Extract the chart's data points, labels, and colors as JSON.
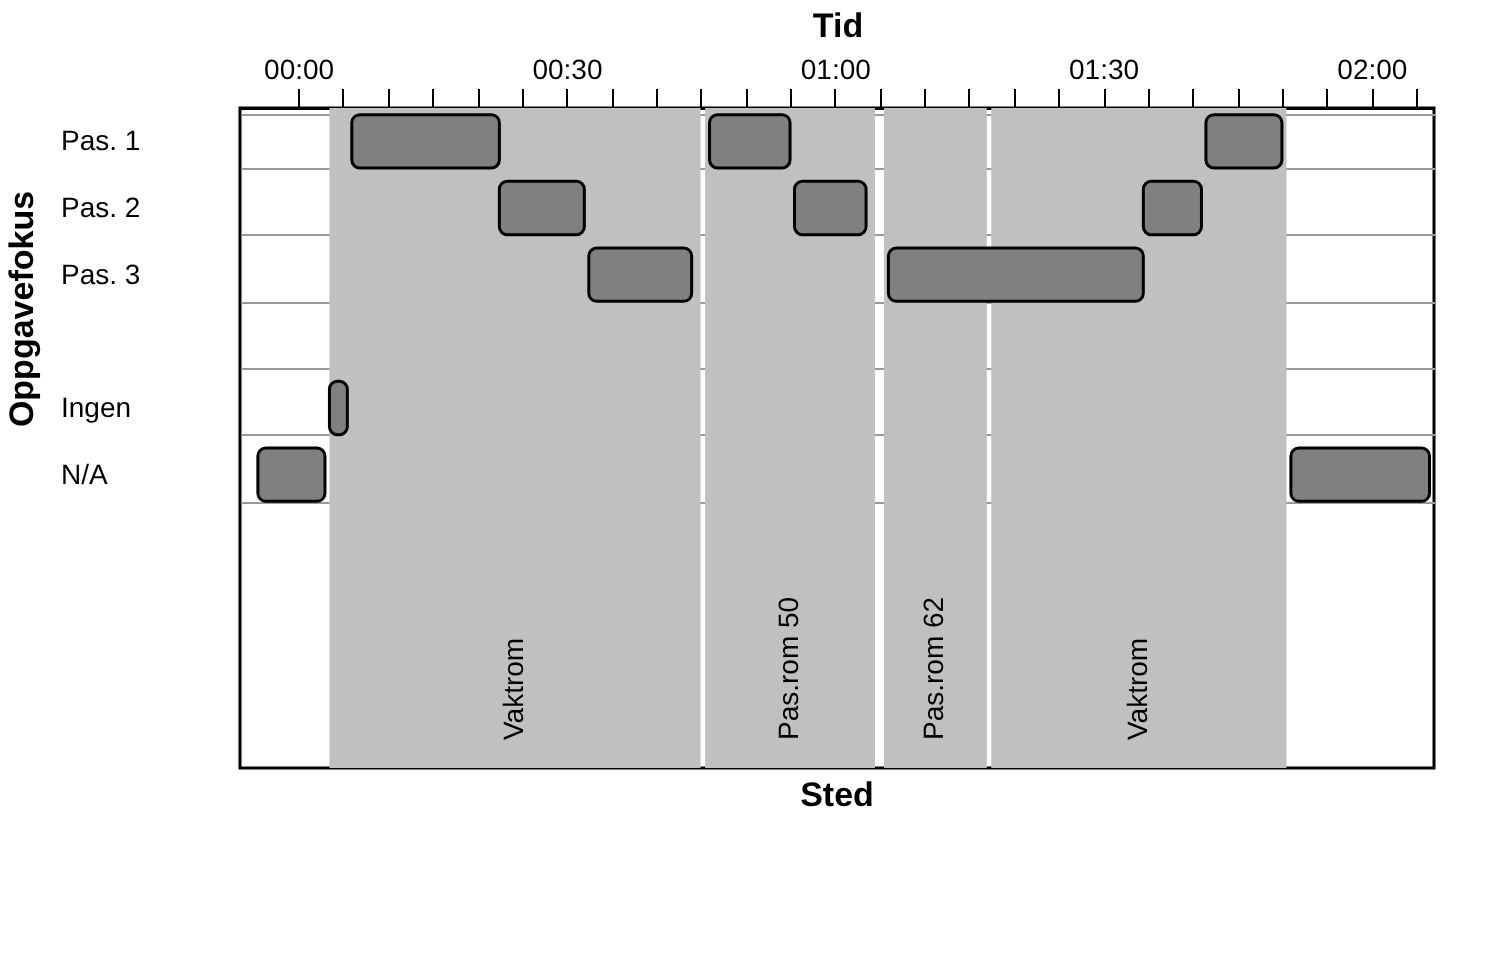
{
  "chart_data": {
    "type": "bar",
    "orientation": "horizontal",
    "xlabel": "Tid",
    "ylabel": "Oppgavefokus",
    "categories": [
      "Pas. 1",
      "Pas. 2",
      "Pas. 3",
      null,
      "Ingen",
      "N/A"
    ],
    "series": [
      {
        "color": "#808080",
        "base": [
          6,
          22.5,
          32.5,
          null,
          3.5,
          -4.5
        ],
        "values": [
          16.5,
          9.5,
          11.5,
          null,
          2,
          7.5
        ]
      },
      {
        "color": "#808080",
        "base": [
          46,
          55.5,
          66,
          null,
          null,
          111
        ],
        "values": [
          9,
          8,
          28.5,
          null,
          null,
          15.5
        ]
      },
      {
        "color": "#808080",
        "base": [
          101.5,
          94.5,
          null,
          null,
          null,
          null
        ],
        "values": [
          8.5,
          6.5,
          null,
          null,
          null,
          null
        ]
      }
    ],
    "xlim": [
      -6.5,
      127
    ],
    "xticks": [
      {
        "value": 0,
        "label": "00:00"
      },
      {
        "value": 5,
        "label": null
      },
      {
        "value": 10,
        "label": null
      },
      {
        "value": 15,
        "label": null
      },
      {
        "value": 20,
        "label": null
      },
      {
        "value": 25,
        "label": null
      },
      {
        "value": 30,
        "label": "00:30"
      },
      {
        "value": 35,
        "label": null
      },
      {
        "value": 40,
        "label": null
      },
      {
        "value": 45,
        "label": null
      },
      {
        "value": 50,
        "label": null
      },
      {
        "value": 55,
        "label": null
      },
      {
        "value": 60,
        "label": "01:00"
      },
      {
        "value": 65,
        "label": null
      },
      {
        "value": 70,
        "label": null
      },
      {
        "value": 75,
        "label": null
      },
      {
        "value": 80,
        "label": null
      },
      {
        "value": 85,
        "label": null
      },
      {
        "value": 90,
        "label": "01:30"
      },
      {
        "value": 95,
        "label": null
      },
      {
        "value": 100,
        "label": null
      },
      {
        "value": 105,
        "label": null
      },
      {
        "value": 110,
        "label": null
      },
      {
        "value": 115,
        "label": null
      },
      {
        "value": 120,
        "label": "02:00"
      },
      {
        "value": 125,
        "label": null
      }
    ],
    "bands": [
      {
        "axis": "x",
        "from": 3.5,
        "to": 45,
        "label": "Vaktrom",
        "color": "#c0c0c0"
      },
      {
        "axis": "x",
        "from": 45.5,
        "to": 64.5,
        "label": "Pas.rom 50",
        "color": "#c0c0c0"
      },
      {
        "axis": "x",
        "from": 65.5,
        "to": 77,
        "label": "Pas.rom 62",
        "color": "#c0c0c0"
      },
      {
        "axis": "x",
        "from": 77.5,
        "to": 110.5,
        "label": "Vaktrom",
        "color": "#c0c0c0"
      }
    ],
    "grid": "y",
    "annotations": [
      "Sted"
    ]
  }
}
